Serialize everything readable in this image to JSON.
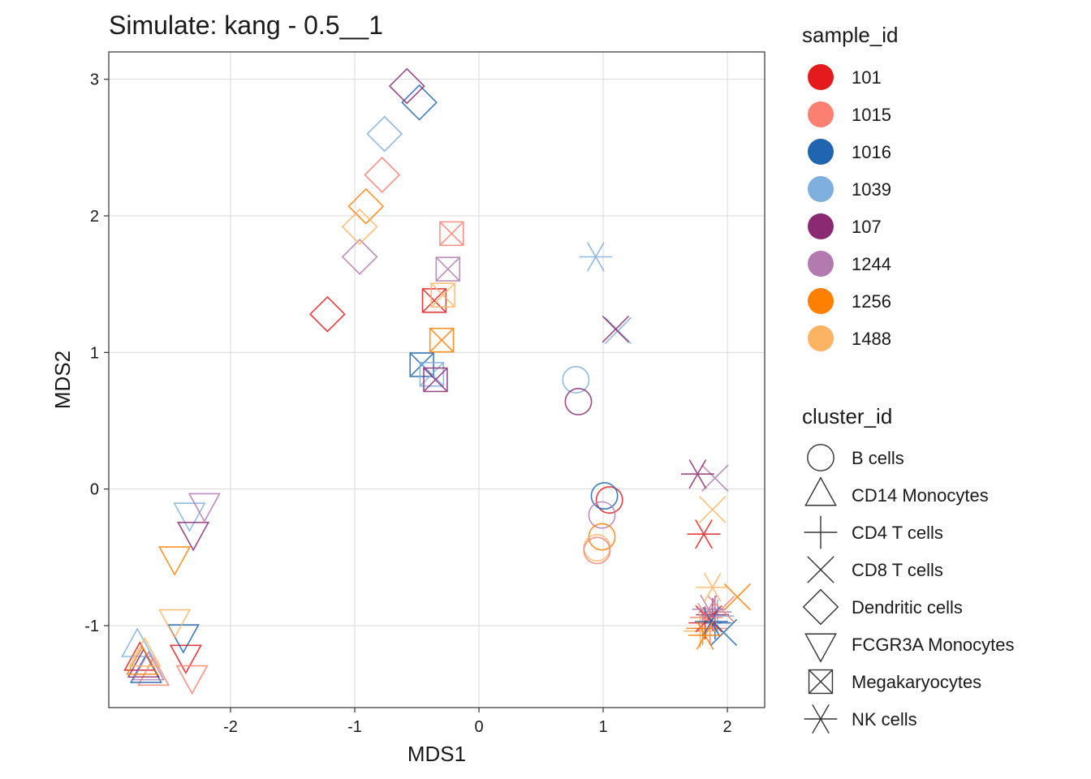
{
  "chart_data": {
    "type": "scatter",
    "title": "Simulate: kang - 0.5__1",
    "xlabel": "MDS1",
    "ylabel": "MDS2",
    "xlim": [
      -2.98,
      2.3
    ],
    "ylim": [
      -1.6,
      3.2
    ],
    "x_ticks": [
      -2,
      -1,
      0,
      1,
      2
    ],
    "y_ticks": [
      -1,
      0,
      1,
      2,
      3
    ],
    "x_tick_labels": [
      "-2",
      "-1",
      "0",
      "1",
      "2"
    ],
    "y_tick_labels": [
      "-1",
      "0",
      "1",
      "2",
      "3"
    ],
    "grid": true,
    "legend_placement": "right",
    "color_legend": {
      "title": "sample_id",
      "entries": [
        {
          "label": "101",
          "color": "#E41A1C"
        },
        {
          "label": "1015",
          "color": "#FB8072"
        },
        {
          "label": "1016",
          "color": "#1F65B0"
        },
        {
          "label": "1039",
          "color": "#7FAFDC"
        },
        {
          "label": "107",
          "color": "#8B2A72"
        },
        {
          "label": "1244",
          "color": "#B27AAE"
        },
        {
          "label": "1256",
          "color": "#FF7F00"
        },
        {
          "label": "1488",
          "color": "#FDB462"
        }
      ]
    },
    "shape_legend": {
      "title": "cluster_id",
      "entries": [
        {
          "label": "B cells",
          "shape": "circle"
        },
        {
          "label": "CD14 Monocytes",
          "shape": "triangle"
        },
        {
          "label": "CD4 T cells",
          "shape": "plus"
        },
        {
          "label": "CD8 T cells",
          "shape": "cross"
        },
        {
          "label": "Dendritic cells",
          "shape": "diamond"
        },
        {
          "label": "FCGR3A Monocytes",
          "shape": "triangle-down"
        },
        {
          "label": "Megakaryocytes",
          "shape": "boxcross"
        },
        {
          "label": "NK cells",
          "shape": "asterisk"
        }
      ]
    },
    "points": [
      {
        "x": 1.05,
        "y": -0.08,
        "sample_id": "101",
        "cluster_id": "B cells"
      },
      {
        "x": 1.01,
        "y": -0.05,
        "sample_id": "1016",
        "cluster_id": "B cells"
      },
      {
        "x": 0.78,
        "y": 0.8,
        "sample_id": "1039",
        "cluster_id": "B cells"
      },
      {
        "x": 0.8,
        "y": 0.64,
        "sample_id": "107",
        "cluster_id": "B cells"
      },
      {
        "x": 0.99,
        "y": -0.19,
        "sample_id": "1244",
        "cluster_id": "B cells"
      },
      {
        "x": 0.99,
        "y": -0.35,
        "sample_id": "1256",
        "cluster_id": "B cells"
      },
      {
        "x": 0.95,
        "y": -0.43,
        "sample_id": "1488",
        "cluster_id": "B cells"
      },
      {
        "x": 0.95,
        "y": -0.45,
        "sample_id": "1015",
        "cluster_id": "B cells"
      },
      {
        "x": -2.73,
        "y": -1.25,
        "sample_id": "101",
        "cluster_id": "CD14 Monocytes"
      },
      {
        "x": -2.62,
        "y": -1.36,
        "sample_id": "1015",
        "cluster_id": "CD14 Monocytes"
      },
      {
        "x": -2.68,
        "y": -1.34,
        "sample_id": "1016",
        "cluster_id": "CD14 Monocytes"
      },
      {
        "x": -2.75,
        "y": -1.15,
        "sample_id": "1039",
        "cluster_id": "CD14 Monocytes"
      },
      {
        "x": -2.7,
        "y": -1.3,
        "sample_id": "107",
        "cluster_id": "CD14 Monocytes"
      },
      {
        "x": -2.66,
        "y": -1.32,
        "sample_id": "1244",
        "cluster_id": "CD14 Monocytes"
      },
      {
        "x": -2.71,
        "y": -1.28,
        "sample_id": "1256",
        "cluster_id": "CD14 Monocytes"
      },
      {
        "x": -2.69,
        "y": -1.22,
        "sample_id": "1488",
        "cluster_id": "CD14 Monocytes"
      },
      {
        "x": 1.82,
        "y": -0.98,
        "sample_id": "101",
        "cluster_id": "CD4 T cells"
      },
      {
        "x": 1.86,
        "y": -1.02,
        "sample_id": "1015",
        "cluster_id": "CD4 T cells"
      },
      {
        "x": 1.9,
        "y": -0.98,
        "sample_id": "1016",
        "cluster_id": "CD4 T cells"
      },
      {
        "x": 1.92,
        "y": -0.93,
        "sample_id": "1039",
        "cluster_id": "CD4 T cells"
      },
      {
        "x": 1.88,
        "y": -0.92,
        "sample_id": "107",
        "cluster_id": "CD4 T cells"
      },
      {
        "x": 1.9,
        "y": -0.9,
        "sample_id": "1244",
        "cluster_id": "CD4 T cells"
      },
      {
        "x": 1.8,
        "y": -1.02,
        "sample_id": "1256",
        "cluster_id": "CD4 T cells"
      },
      {
        "x": 1.78,
        "y": -1.04,
        "sample_id": "1488",
        "cluster_id": "CD4 T cells"
      },
      {
        "x": 1.85,
        "y": -0.95,
        "sample_id": "101",
        "cluster_id": "CD8 T cells"
      },
      {
        "x": 1.95,
        "y": -0.88,
        "sample_id": "1015",
        "cluster_id": "CD8 T cells"
      },
      {
        "x": 1.97,
        "y": -1.05,
        "sample_id": "1016",
        "cluster_id": "CD8 T cells"
      },
      {
        "x": 1.12,
        "y": 1.16,
        "sample_id": "1039",
        "cluster_id": "CD8 T cells"
      },
      {
        "x": 1.1,
        "y": 1.17,
        "sample_id": "107",
        "cluster_id": "CD8 T cells"
      },
      {
        "x": 1.9,
        "y": 0.08,
        "sample_id": "1244",
        "cluster_id": "CD8 T cells"
      },
      {
        "x": 2.08,
        "y": -0.79,
        "sample_id": "1256",
        "cluster_id": "CD8 T cells"
      },
      {
        "x": 1.88,
        "y": -0.15,
        "sample_id": "1488",
        "cluster_id": "CD8 T cells"
      },
      {
        "x": -1.22,
        "y": 1.28,
        "sample_id": "101",
        "cluster_id": "Dendritic cells"
      },
      {
        "x": -0.78,
        "y": 2.3,
        "sample_id": "1015",
        "cluster_id": "Dendritic cells"
      },
      {
        "x": -0.48,
        "y": 2.83,
        "sample_id": "1016",
        "cluster_id": "Dendritic cells"
      },
      {
        "x": -0.76,
        "y": 2.6,
        "sample_id": "1039",
        "cluster_id": "Dendritic cells"
      },
      {
        "x": -0.58,
        "y": 2.95,
        "sample_id": "107",
        "cluster_id": "Dendritic cells"
      },
      {
        "x": -0.96,
        "y": 1.7,
        "sample_id": "1244",
        "cluster_id": "Dendritic cells"
      },
      {
        "x": -0.91,
        "y": 2.07,
        "sample_id": "1256",
        "cluster_id": "Dendritic cells"
      },
      {
        "x": -0.96,
        "y": 1.92,
        "sample_id": "1488",
        "cluster_id": "Dendritic cells"
      },
      {
        "x": -2.36,
        "y": -1.22,
        "sample_id": "101",
        "cluster_id": "FCGR3A Monocytes"
      },
      {
        "x": -2.31,
        "y": -1.37,
        "sample_id": "1015",
        "cluster_id": "FCGR3A Monocytes"
      },
      {
        "x": -2.38,
        "y": -1.07,
        "sample_id": "1016",
        "cluster_id": "FCGR3A Monocytes"
      },
      {
        "x": -2.33,
        "y": -0.18,
        "sample_id": "1039",
        "cluster_id": "FCGR3A Monocytes"
      },
      {
        "x": -2.3,
        "y": -0.32,
        "sample_id": "107",
        "cluster_id": "FCGR3A Monocytes"
      },
      {
        "x": -2.21,
        "y": -0.11,
        "sample_id": "1244",
        "cluster_id": "FCGR3A Monocytes"
      },
      {
        "x": -2.45,
        "y": -0.5,
        "sample_id": "1256",
        "cluster_id": "FCGR3A Monocytes"
      },
      {
        "x": -2.45,
        "y": -0.96,
        "sample_id": "1488",
        "cluster_id": "FCGR3A Monocytes"
      },
      {
        "x": -0.36,
        "y": 1.38,
        "sample_id": "101",
        "cluster_id": "Megakaryocytes"
      },
      {
        "x": -0.22,
        "y": 1.87,
        "sample_id": "1015",
        "cluster_id": "Megakaryocytes"
      },
      {
        "x": -0.46,
        "y": 0.91,
        "sample_id": "1016",
        "cluster_id": "Megakaryocytes"
      },
      {
        "x": -0.38,
        "y": 0.84,
        "sample_id": "1039",
        "cluster_id": "Megakaryocytes"
      },
      {
        "x": -0.35,
        "y": 0.8,
        "sample_id": "107",
        "cluster_id": "Megakaryocytes"
      },
      {
        "x": -0.25,
        "y": 1.61,
        "sample_id": "1244",
        "cluster_id": "Megakaryocytes"
      },
      {
        "x": -0.3,
        "y": 1.09,
        "sample_id": "1256",
        "cluster_id": "Megakaryocytes"
      },
      {
        "x": -0.29,
        "y": 1.42,
        "sample_id": "1488",
        "cluster_id": "Megakaryocytes"
      },
      {
        "x": 1.81,
        "y": -0.33,
        "sample_id": "101",
        "cluster_id": "NK cells"
      },
      {
        "x": 1.83,
        "y": -0.94,
        "sample_id": "1015",
        "cluster_id": "NK cells"
      },
      {
        "x": 1.87,
        "y": -0.97,
        "sample_id": "1016",
        "cluster_id": "NK cells"
      },
      {
        "x": 0.94,
        "y": 1.7,
        "sample_id": "1039",
        "cluster_id": "NK cells"
      },
      {
        "x": 1.76,
        "y": 0.11,
        "sample_id": "107",
        "cluster_id": "NK cells"
      },
      {
        "x": 1.85,
        "y": -0.88,
        "sample_id": "1244",
        "cluster_id": "NK cells"
      },
      {
        "x": 1.82,
        "y": -1.07,
        "sample_id": "1256",
        "cluster_id": "NK cells"
      },
      {
        "x": 1.88,
        "y": -0.72,
        "sample_id": "1488",
        "cluster_id": "NK cells"
      }
    ]
  }
}
